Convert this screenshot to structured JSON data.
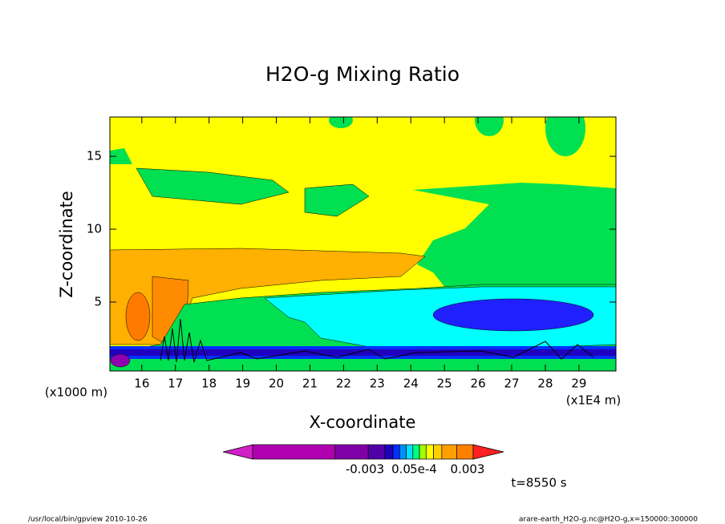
{
  "chart_data": {
    "type": "contour",
    "title": "H2O-g Mixing Ratio",
    "xlabel": "X-coordinate",
    "ylabel": "Z-coordinate",
    "x_unit": "(x1E4 m)",
    "y_unit": "(x1000 m)",
    "xlim": [
      15.05,
      30.1
    ],
    "ylim": [
      0.27,
      17.7
    ],
    "xticks": [
      16,
      17,
      18,
      19,
      20,
      21,
      22,
      23,
      24,
      25,
      26,
      27,
      28,
      29
    ],
    "yticks": [
      5,
      10,
      15
    ],
    "colorbar_colors": [
      "#b000b0",
      "#8000a8",
      "#5000a8",
      "#2000c0",
      "#0030ff",
      "#0090ff",
      "#00e0ff",
      "#00ff80",
      "#a0ff00",
      "#ffff00",
      "#ffd000",
      "#ffa000",
      "#ff8000"
    ],
    "extend_colors": [
      "#d020c8",
      "#ff2020"
    ],
    "colorbar_labels": [
      "-0.003",
      "0.0",
      "5e-4",
      "0.003"
    ],
    "time_label": "t=8550 s",
    "footer_left": "/usr/local/bin/gpview  2010-10-26",
    "footer_right": "arare-earth_H2O-g.nc@H2O-g,x=150000:300000"
  }
}
